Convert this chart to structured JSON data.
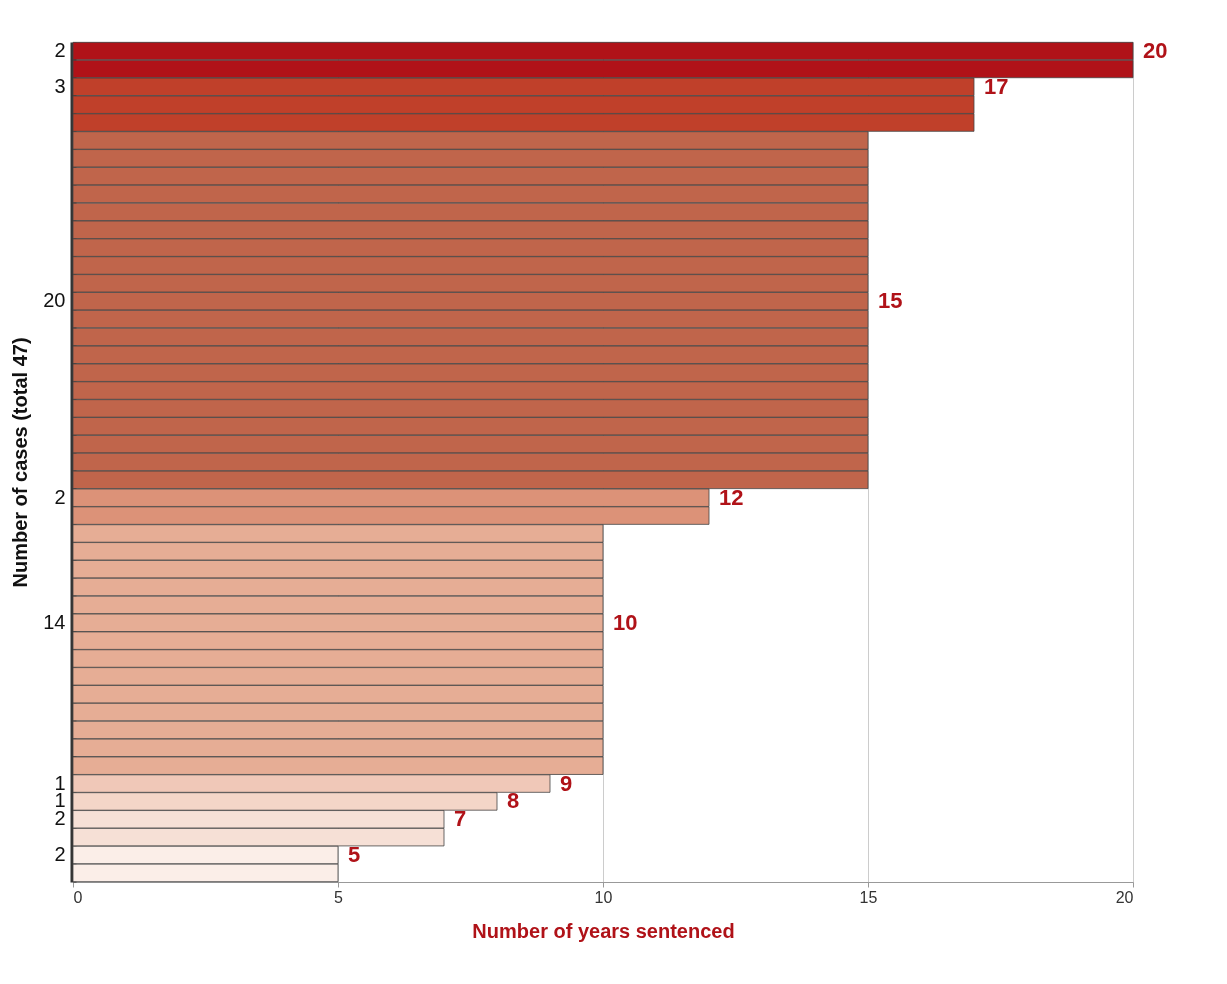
{
  "chart_data": {
    "type": "bar",
    "orientation": "horizontal",
    "xlabel": "Number of years sentenced",
    "ylabel": "Number of cases (total 47)",
    "categories": [
      "2",
      null,
      "3",
      null,
      null,
      null,
      null,
      null,
      null,
      null,
      null,
      null,
      null,
      null,
      "20",
      null,
      null,
      null,
      null,
      null,
      null,
      null,
      null,
      null,
      null,
      "2",
      null,
      null,
      null,
      null,
      null,
      null,
      "14",
      null,
      null,
      null,
      null,
      null,
      null,
      null,
      null,
      "1",
      "1",
      "2",
      null,
      "2",
      null
    ],
    "values": [
      20,
      20,
      17,
      17,
      17,
      15,
      15,
      15,
      15,
      15,
      15,
      15,
      15,
      15,
      15,
      15,
      15,
      15,
      15,
      15,
      15,
      15,
      15,
      15,
      15,
      12,
      12,
      10,
      10,
      10,
      10,
      10,
      10,
      10,
      10,
      10,
      10,
      10,
      10,
      10,
      10,
      9,
      8,
      7,
      7,
      5,
      5
    ],
    "value_labels": [
      "20",
      null,
      "17",
      null,
      null,
      null,
      null,
      null,
      null,
      null,
      null,
      null,
      null,
      null,
      "15",
      null,
      null,
      null,
      null,
      null,
      null,
      null,
      null,
      null,
      null,
      "12",
      null,
      null,
      null,
      null,
      null,
      null,
      "10",
      null,
      null,
      null,
      null,
      null,
      null,
      null,
      null,
      "9",
      "8",
      "7",
      null,
      "5",
      null
    ],
    "colors": [
      "#b01218",
      "#b01218",
      "#c0402a",
      "#c0402a",
      "#c0402a",
      "#c0654b",
      "#c0654b",
      "#c0654b",
      "#c0654b",
      "#c0654b",
      "#c0654b",
      "#c0654b",
      "#c0654b",
      "#c0654b",
      "#c0654b",
      "#c0654b",
      "#c0654b",
      "#c0654b",
      "#c0654b",
      "#c0654b",
      "#c0654b",
      "#c0654b",
      "#c0654b",
      "#c0654b",
      "#c0654b",
      "#dc9278",
      "#dc9278",
      "#e6ad95",
      "#e6ad95",
      "#e6ad95",
      "#e6ad95",
      "#e6ad95",
      "#e6ad95",
      "#e6ad95",
      "#e6ad95",
      "#e6ad95",
      "#e6ad95",
      "#e6ad95",
      "#e6ad95",
      "#e6ad95",
      "#e6ad95",
      "#f0c8b8",
      "#f4d6c8",
      "#f6e0d6",
      "#f6e0d6",
      "#fbeee8",
      "#fbeee8"
    ],
    "xlim": [
      0,
      20
    ],
    "xticks": [
      0,
      5,
      10,
      15,
      20
    ],
    "grid": "x"
  }
}
